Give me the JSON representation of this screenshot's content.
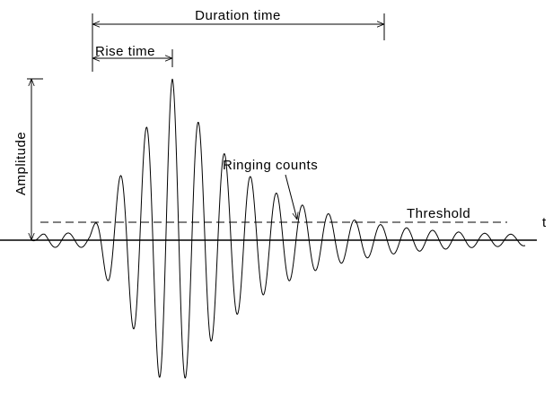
{
  "labels": {
    "duration": "Duration time",
    "rise": "Rise time",
    "amplitude": "Amplitude",
    "ringing": "Ringing counts",
    "threshold": "Threshold",
    "axis": "t"
  }
}
